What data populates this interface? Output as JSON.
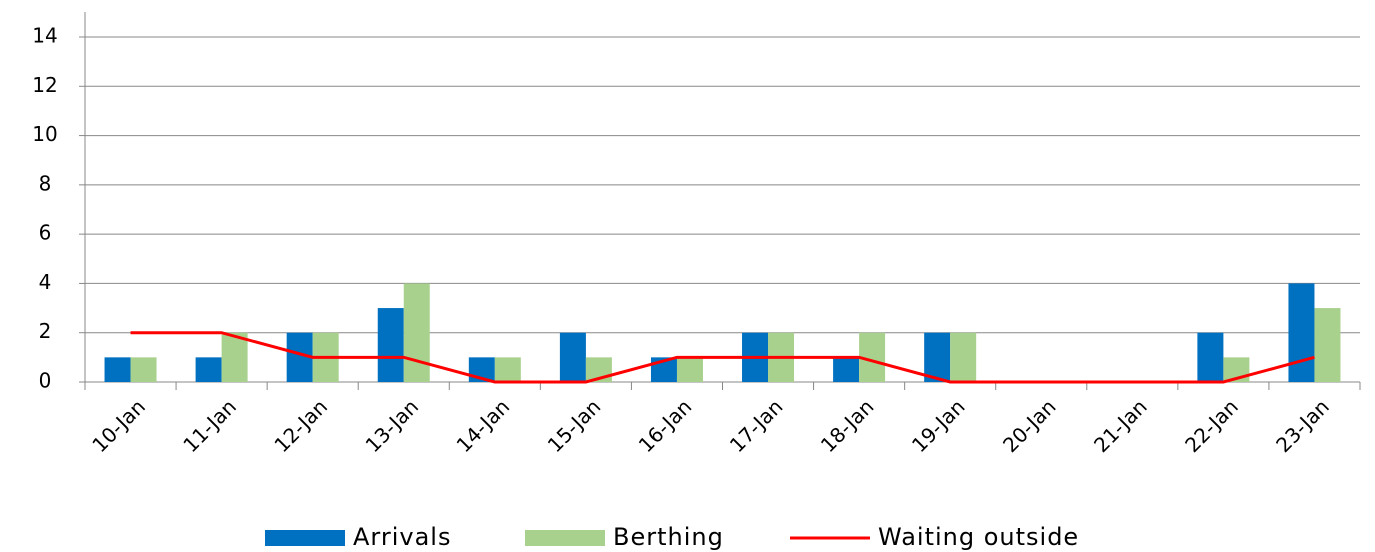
{
  "chart_data": {
    "type": "bar",
    "categories": [
      "10-Jan",
      "11-Jan",
      "12-Jan",
      "13-Jan",
      "14-Jan",
      "15-Jan",
      "16-Jan",
      "17-Jan",
      "18-Jan",
      "19-Jan",
      "20-Jan",
      "21-Jan",
      "22-Jan",
      "23-Jan"
    ],
    "series": [
      {
        "name": "Arrivals",
        "type": "bar",
        "color": "#0070c0",
        "values": [
          1,
          1,
          2,
          3,
          1,
          2,
          1,
          2,
          1,
          2,
          0,
          0,
          2,
          4
        ]
      },
      {
        "name": "Berthing",
        "type": "bar",
        "color": "#a9d18e",
        "values": [
          1,
          2,
          2,
          4,
          1,
          1,
          1,
          2,
          2,
          2,
          0,
          0,
          1,
          3
        ]
      },
      {
        "name": "Waiting outside",
        "type": "line",
        "color": "#ff0000",
        "values": [
          2,
          2,
          1,
          1,
          0,
          0,
          1,
          1,
          1,
          0,
          0,
          0,
          0,
          1
        ]
      }
    ],
    "ylim": [
      0,
      14
    ],
    "yticks": [
      0,
      2,
      4,
      6,
      8,
      10,
      12,
      14
    ],
    "grid": true,
    "legend": "bottom"
  }
}
